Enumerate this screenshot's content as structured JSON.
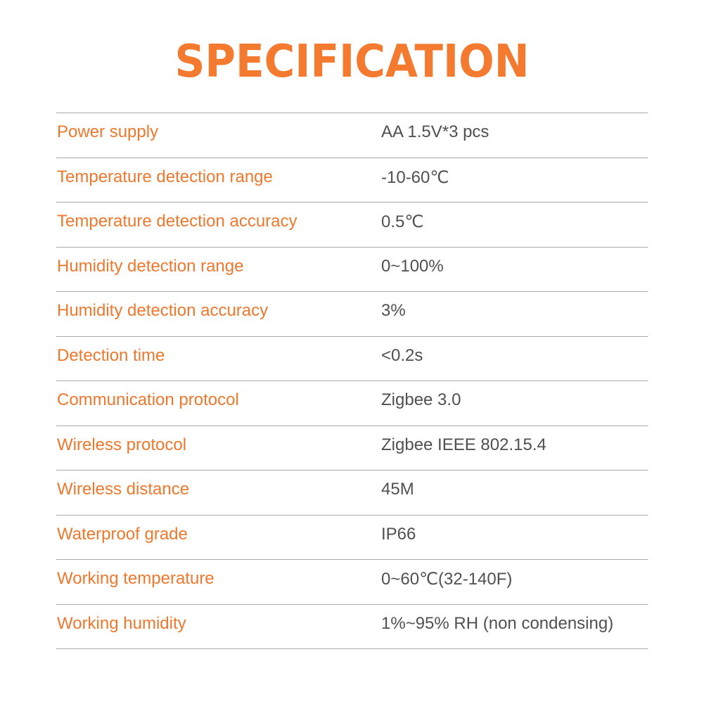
{
  "title": "SPECIFICATION",
  "colors": {
    "accent": "#f47a30",
    "value_text": "#505050",
    "divider": "#a8a8a8"
  },
  "specs": [
    {
      "label": "Power supply",
      "value": "AA 1.5V*3 pcs"
    },
    {
      "label": "Temperature detection range",
      "value": "-10-60℃"
    },
    {
      "label": "Temperature detection accuracy",
      "value": "0.5℃"
    },
    {
      "label": "Humidity detection range",
      "value": "0~100%"
    },
    {
      "label": "Humidity detection accuracy",
      "value": "3%"
    },
    {
      "label": "Detection time",
      "value": "<0.2s"
    },
    {
      "label": "Communication protocol",
      "value": "Zigbee 3.0"
    },
    {
      "label": "Wireless protocol",
      "value": "Zigbee IEEE 802.15.4"
    },
    {
      "label": "Wireless distance",
      "value": "45M"
    },
    {
      "label": "Waterproof grade",
      "value": "IP66"
    },
    {
      "label": "Working temperature",
      "value": "0~60℃(32-140F)"
    },
    {
      "label": "Working humidity",
      "value": "1%~95% RH (non condensing)"
    }
  ]
}
